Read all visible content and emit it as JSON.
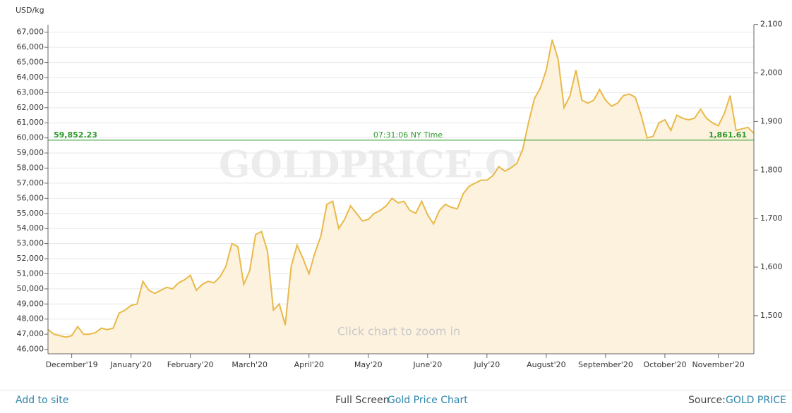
{
  "chart_data": {
    "type": "line",
    "y_label": "USD/kg",
    "watermark": "GOLDPRICE.ORG",
    "hint": "Click chart to zoom in",
    "categories": [
      null,
      null,
      null,
      null,
      "December'19",
      null,
      null,
      null,
      null,
      null,
      null,
      null,
      null,
      null,
      "January'20",
      null,
      null,
      null,
      null,
      null,
      null,
      null,
      null,
      null,
      "February'20",
      null,
      null,
      null,
      null,
      null,
      null,
      null,
      null,
      null,
      "March'20",
      null,
      null,
      null,
      null,
      null,
      null,
      null,
      null,
      null,
      "April'20",
      null,
      null,
      null,
      null,
      null,
      null,
      null,
      null,
      null,
      "May'20",
      null,
      null,
      null,
      null,
      null,
      null,
      null,
      null,
      null,
      "June'20",
      null,
      null,
      null,
      null,
      null,
      null,
      null,
      null,
      null,
      "July'20",
      null,
      null,
      null,
      null,
      null,
      null,
      null,
      null,
      null,
      "August'20",
      null,
      null,
      null,
      null,
      null,
      null,
      null,
      null,
      null,
      "September'20",
      null,
      null,
      null,
      null,
      null,
      null,
      null,
      null,
      null,
      "October'20",
      null,
      null,
      null,
      null,
      null,
      null,
      null,
      null,
      "November'20",
      null,
      null,
      null,
      null,
      null,
      null
    ],
    "series": [
      {
        "name": "Gold Price",
        "color": "#e9b949",
        "fill": "#fdf2de",
        "values": [
          47300,
          47000,
          46900,
          46800,
          46900,
          47500,
          47000,
          47000,
          47100,
          47400,
          47300,
          47400,
          48400,
          48600,
          48900,
          49000,
          50500,
          49900,
          49700,
          49900,
          50100,
          50000,
          50400,
          50600,
          50900,
          49900,
          50300,
          50500,
          50400,
          50800,
          51500,
          53000,
          52800,
          50300,
          51200,
          53600,
          53800,
          52500,
          48600,
          49000,
          47600,
          51500,
          52900,
          52000,
          51000,
          52400,
          53500,
          55600,
          55800,
          54000,
          54600,
          55500,
          55000,
          54500,
          54600,
          55000,
          55200,
          55500,
          56000,
          55700,
          55800,
          55200,
          55000,
          55800,
          54900,
          54300,
          55200,
          55600,
          55400,
          55300,
          56300,
          56800,
          57000,
          57200,
          57200,
          57500,
          58100,
          57800,
          58000,
          58300,
          59200,
          61000,
          62600,
          63300,
          64500,
          66500,
          65200,
          62000,
          62800,
          64500,
          62500,
          62300,
          62500,
          63200,
          62500,
          62100,
          62300,
          62800,
          62900,
          62700,
          61500,
          60000,
          60100,
          61000,
          61200,
          60500,
          61500,
          61300,
          61200,
          61300,
          61900,
          61300,
          61000,
          60800,
          61600,
          62800,
          60500,
          60600,
          60700,
          60300
        ]
      }
    ],
    "current_price": {
      "value": 59852.23,
      "label": "59,852.23"
    },
    "current_price_y2": {
      "value": 1861.61,
      "label": "1,861.61"
    },
    "current_time": "07:31:06 NY Time",
    "ylim": [
      45700,
      67500
    ],
    "yticks": [
      {
        "value": 46000,
        "label": "46,000"
      },
      {
        "value": 47000,
        "label": "47,000"
      },
      {
        "value": 48000,
        "label": "48,000"
      },
      {
        "value": 49000,
        "label": "49,000"
      },
      {
        "value": 50000,
        "label": "50,000"
      },
      {
        "value": 51000,
        "label": "51,000"
      },
      {
        "value": 52000,
        "label": "52,000"
      },
      {
        "value": 53000,
        "label": "53,000"
      },
      {
        "value": 54000,
        "label": "54,000"
      },
      {
        "value": 55000,
        "label": "55,000"
      },
      {
        "value": 56000,
        "label": "56,000"
      },
      {
        "value": 57000,
        "label": "57,000"
      },
      {
        "value": 58000,
        "label": "58,000"
      },
      {
        "value": 59000,
        "label": "59,000"
      },
      {
        "value": 60000,
        "label": "60,000"
      },
      {
        "value": 61000,
        "label": "61,000"
      },
      {
        "value": 62000,
        "label": "62,000"
      },
      {
        "value": 63000,
        "label": "63,000"
      },
      {
        "value": 64000,
        "label": "64,000"
      },
      {
        "value": 65000,
        "label": "65,000"
      },
      {
        "value": 66000,
        "label": "66,000"
      },
      {
        "value": 67000,
        "label": "67,000"
      }
    ],
    "y2lim": [
      1421.4,
      2099.5
    ],
    "y2ticks": [
      {
        "value": 1500,
        "label": "1,500"
      },
      {
        "value": 1600,
        "label": "1,600"
      },
      {
        "value": 1700,
        "label": "1,700"
      },
      {
        "value": 1800,
        "label": "1,800"
      },
      {
        "value": 1900,
        "label": "1,900"
      },
      {
        "value": 2000,
        "label": "2,000"
      },
      {
        "value": 2100,
        "label": "2,100"
      }
    ],
    "grid": true
  },
  "footer": {
    "add_to_site": "Add to site",
    "full_screen": "Full Screen",
    "chart_link": "Gold Price Chart",
    "source_label": "Source:",
    "source_link": "GOLD PRICE"
  }
}
